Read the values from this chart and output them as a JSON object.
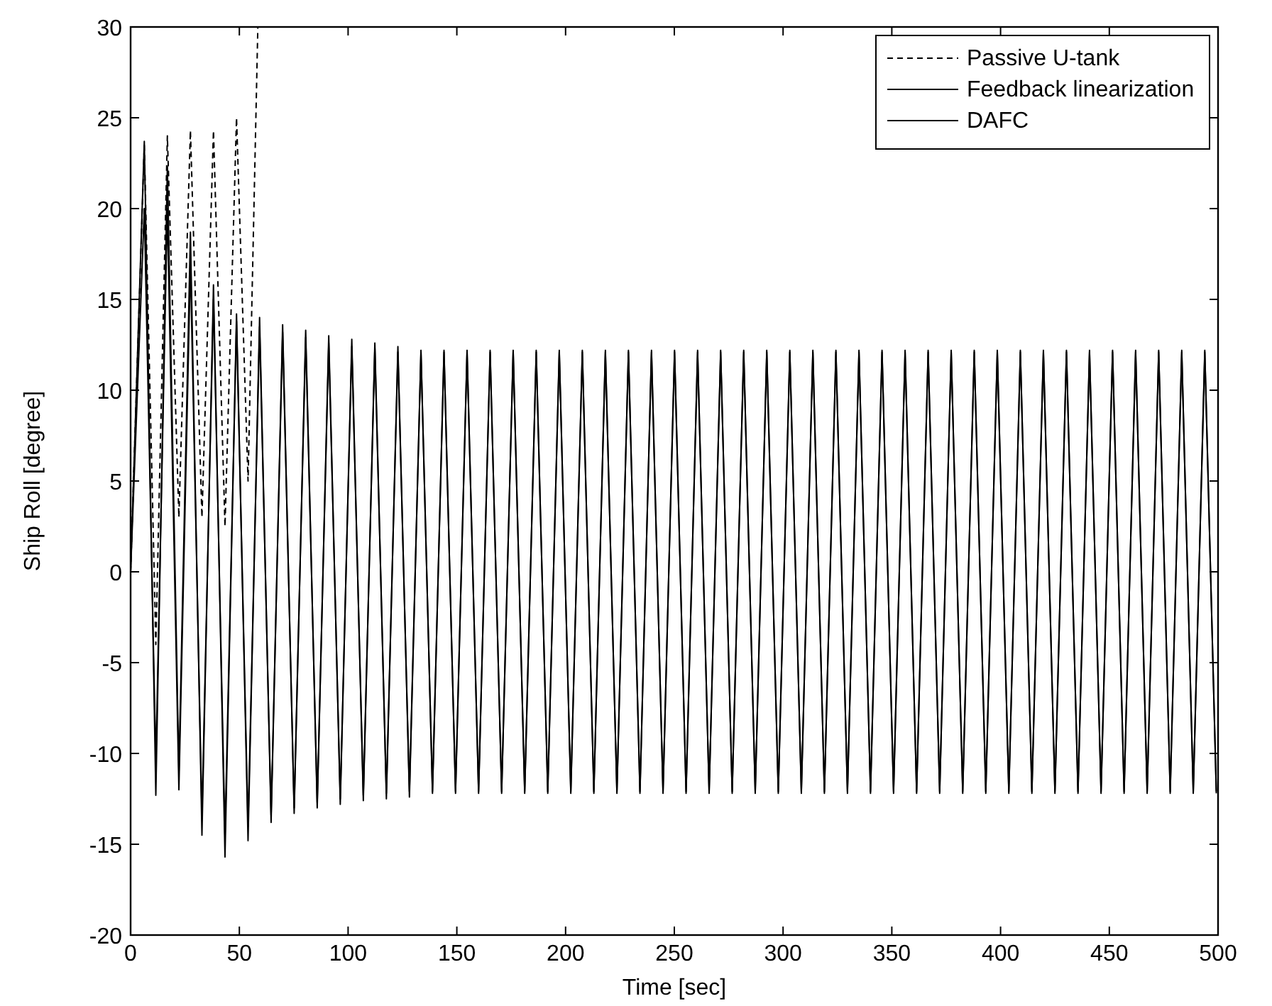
{
  "chart_data": {
    "type": "line",
    "xlabel": "Time [sec]",
    "ylabel": "Ship Roll [degree]",
    "xlim": [
      0,
      500
    ],
    "ylim": [
      -20,
      30
    ],
    "xticks": [
      0,
      50,
      100,
      150,
      200,
      250,
      300,
      350,
      400,
      450,
      500
    ],
    "yticks": [
      -20,
      -15,
      -10,
      -5,
      0,
      5,
      10,
      15,
      20,
      25,
      30
    ],
    "grid": false,
    "legend": "top right",
    "x": [
      0,
      6.3,
      11.6,
      16.9,
      22.2,
      27.5,
      32.8,
      38.1,
      43.4,
      48.7,
      54.0,
      59.3,
      64.6,
      69.9,
      75.2,
      80.5,
      85.8,
      91.1,
      96.4,
      101.7,
      107.0,
      112.3,
      117.6,
      122.9,
      128.2,
      133.5,
      138.8,
      144.1,
      149.4,
      154.7,
      160.0,
      165.3,
      170.6,
      175.9,
      181.2,
      186.5,
      191.8,
      197.1,
      202.4,
      207.7,
      213.0,
      218.3,
      223.6,
      228.9,
      234.2,
      239.5,
      244.8,
      250.1,
      255.4,
      260.7,
      266.0,
      271.3,
      276.6,
      281.9,
      287.2,
      292.5,
      297.8,
      303.1,
      308.4,
      313.7,
      319.0,
      324.3,
      329.6,
      334.9,
      340.2,
      345.5,
      350.8,
      356.1,
      361.4,
      366.7,
      372.0,
      377.3,
      382.6,
      387.9,
      393.2,
      398.5,
      403.8,
      409.1,
      414.4,
      419.7,
      425.0,
      430.3,
      435.6,
      440.9,
      446.2,
      451.5,
      456.8,
      462.1,
      467.4,
      472.7,
      478.0,
      483.3,
      488.6,
      493.9,
      499.2
    ],
    "series": [
      {
        "name": "Passive U-tank",
        "color": "#000000",
        "line_style": "dashed",
        "x": [
          0,
          6.3,
          11.6,
          16.9,
          22.2,
          27.5,
          32.8,
          38.1,
          43.4,
          48.7,
          54.0,
          58.5
        ],
        "values": [
          0,
          23.5,
          -4,
          24,
          3,
          24.3,
          3,
          24.3,
          2.5,
          25,
          5,
          30
        ]
      },
      {
        "name": "Feedback linearization",
        "color": "#000000",
        "line_style": "solid",
        "values": [
          0,
          23.7,
          -12.3,
          22.3,
          -11,
          18.7,
          -14.5,
          15.8,
          -15.7,
          14.2,
          -14.8,
          14,
          -13.8,
          13.6,
          -13.3,
          13.3,
          -13,
          13,
          -12.8,
          12.8,
          -12.6,
          12.6,
          -12.5,
          12.4,
          -12.4,
          12.2,
          -12.2,
          12.2,
          -12.2,
          12.2,
          -12.2,
          12.2,
          -12.2,
          12.2,
          -12.2,
          12.2,
          -12.2,
          12.2,
          -12.2,
          12.2,
          -12.2,
          12.2,
          -12.2,
          12.2,
          -12.2,
          12.2,
          -12.2,
          12.2,
          -12.2,
          12.2,
          -12.2,
          12.2,
          -12.2,
          12.2,
          -12.2,
          12.2,
          -12.2,
          12.2,
          -12.2,
          12.2,
          -12.2,
          12.2,
          -12.2,
          12.2,
          -12.2,
          12.2,
          -12.2,
          12.2,
          -12.2,
          12.2,
          -12.2,
          12.2,
          -12.2,
          12.2,
          -12.2,
          12.2,
          -12.2,
          12.2,
          -12.2,
          12.2,
          -12.2,
          12.2,
          -12.2,
          12.2,
          -12.2,
          12.2,
          -12.2,
          12.2,
          -12.2,
          12.2,
          -12.2,
          12.2,
          -12.2,
          12.2,
          -12.2
        ]
      },
      {
        "name": "DAFC",
        "color": "#000000",
        "line_style": "solid",
        "values": [
          0,
          20,
          -10.5,
          20,
          -12,
          17,
          -13.5,
          15,
          -14.5,
          13.8,
          -14,
          13.5,
          -13.4,
          13.2,
          -13,
          12.9,
          -12.7,
          12.6,
          -12.5,
          12.4,
          -12.3,
          12.3,
          -12.2,
          12.1,
          -12.1,
          12.1,
          -12.1,
          12.1,
          -12.1,
          12.1,
          -12.1,
          12.1,
          -12.1,
          12.1,
          -12.1,
          12.1,
          -12.1,
          12.1,
          -12.1,
          12.1,
          -12.1,
          12.1,
          -12.1,
          12.1,
          -12.1,
          12.1,
          -12.1,
          12.1,
          -12.1,
          12.1,
          -12.1,
          12.1,
          -12.1,
          12.1,
          -12.1,
          12.1,
          -12.1,
          12.1,
          -12.1,
          12.1,
          -12.1,
          12.1,
          -12.1,
          12.1,
          -12.1,
          12.1,
          -12.1,
          12.1,
          -12.1,
          12.1,
          -12.1,
          12.1,
          -12.1,
          12.1,
          -12.1,
          12.1,
          -12.1,
          12.1,
          -12.1,
          12.1,
          -12.1,
          12.1,
          -12.1,
          12.1,
          -12.1,
          12.1,
          -12.1,
          12.1,
          -12.1,
          12.1,
          -12.1,
          12.1,
          -12.1,
          12.1,
          -12.1
        ]
      }
    ]
  }
}
